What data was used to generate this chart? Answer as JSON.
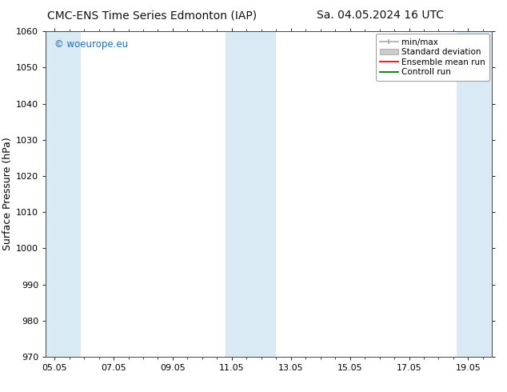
{
  "title_left": "CMC-ENS Time Series Edmonton (IAP)",
  "title_right": "Sa. 04.05.2024 16 UTC",
  "ylabel": "Surface Pressure (hPa)",
  "ylim": [
    970,
    1060
  ],
  "yticks": [
    970,
    980,
    990,
    1000,
    1010,
    1020,
    1030,
    1040,
    1050,
    1060
  ],
  "xtick_labels": [
    "05.05",
    "07.05",
    "09.05",
    "11.05",
    "13.05",
    "15.05",
    "17.05",
    "19.05"
  ],
  "xtick_positions": [
    0,
    2,
    4,
    6,
    8,
    10,
    12,
    14
  ],
  "xlim": [
    -0.3,
    14.8
  ],
  "shaded_bands": [
    {
      "x_start": -0.3,
      "x_end": 0.9,
      "color": "#daeaf5"
    },
    {
      "x_start": 5.8,
      "x_end": 6.5,
      "color": "#daeaf5"
    },
    {
      "x_start": 6.5,
      "x_end": 7.5,
      "color": "#daeaf5"
    },
    {
      "x_start": 13.6,
      "x_end": 14.8,
      "color": "#daeaf5"
    }
  ],
  "watermark": "© woeurope.eu",
  "watermark_color": "#1e6eb5",
  "bg_color": "#ffffff",
  "plot_bg_color": "#ffffff",
  "legend_items": [
    {
      "label": "min/max",
      "type": "errorbar",
      "color": "#aaaaaa"
    },
    {
      "label": "Standard deviation",
      "type": "band",
      "color": "#cccccc"
    },
    {
      "label": "Ensemble mean run",
      "type": "line",
      "color": "#ff0000"
    },
    {
      "label": "Controll run",
      "type": "line",
      "color": "#007700"
    }
  ],
  "title_fontsize": 10,
  "ylabel_fontsize": 9,
  "tick_fontsize": 8,
  "legend_fontsize": 7.5,
  "watermark_fontsize": 8.5
}
